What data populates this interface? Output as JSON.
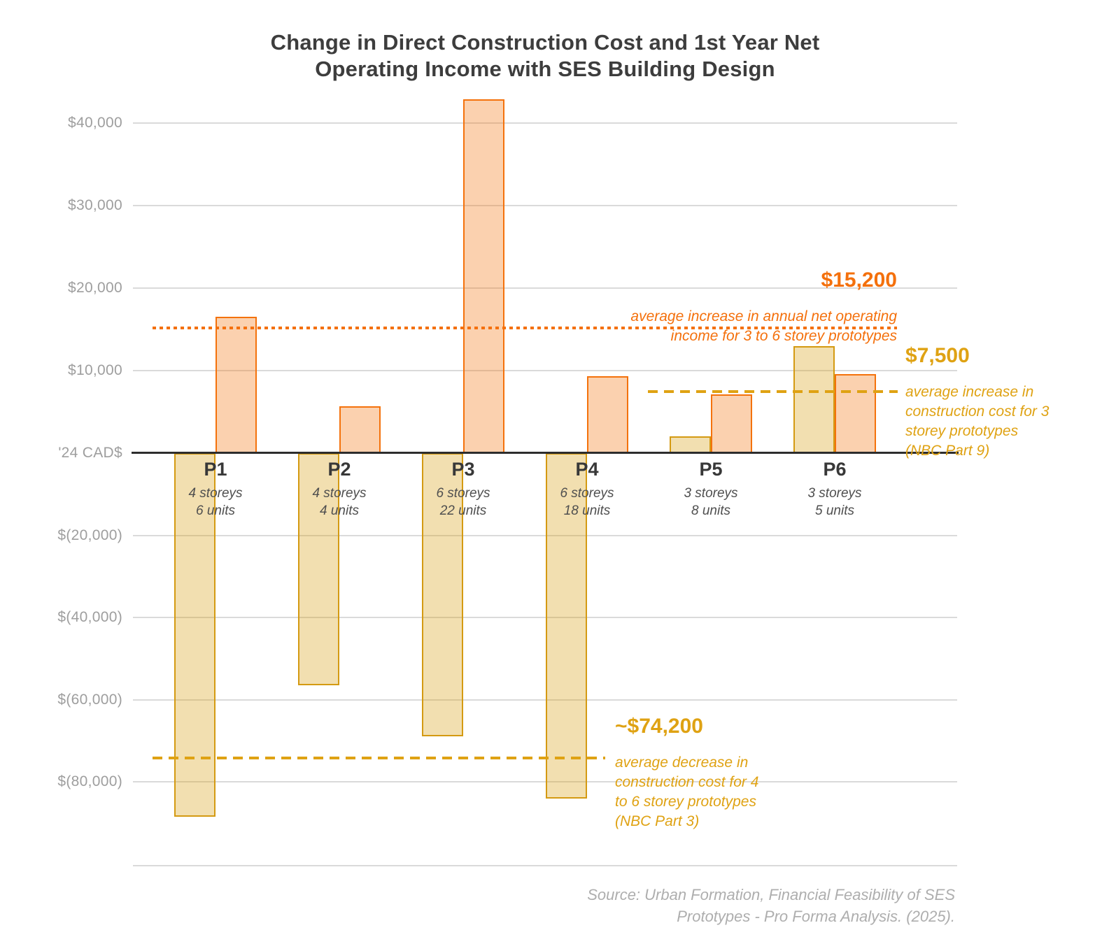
{
  "chart_data": {
    "type": "bar",
    "title": "Change in Direct Construction Cost and 1st Year Net\nOperating Income with SES Building Design",
    "y_axis": {
      "zero_label": "'24 CAD$",
      "ticks": [
        {
          "label": "$40,000",
          "value": 40000
        },
        {
          "label": "$30,000",
          "value": 30000
        },
        {
          "label": "$20,000",
          "value": 20000
        },
        {
          "label": "$10,000",
          "value": 10000
        },
        {
          "label": "$(20,000)",
          "value": -20000
        },
        {
          "label": "$(40,000)",
          "value": -40000
        },
        {
          "label": "$(60,000)",
          "value": -60000
        },
        {
          "label": "$(80,000)",
          "value": -80000
        }
      ],
      "range_positive": [
        0,
        43000
      ],
      "range_negative": [
        0,
        -92000
      ],
      "note": "negative half of axis is compressed to half the positive pixel scale"
    },
    "categories": [
      {
        "id": "P1",
        "label": "P1",
        "sublabel": "4 storeys\n6 units"
      },
      {
        "id": "P2",
        "label": "P2",
        "sublabel": "4 storeys\n4 units"
      },
      {
        "id": "P3",
        "label": "P3",
        "sublabel": "6 storeys\n22 units"
      },
      {
        "id": "P4",
        "label": "P4",
        "sublabel": "6 storeys\n18 units"
      },
      {
        "id": "P5",
        "label": "P5",
        "sublabel": "3 storeys\n8 units"
      },
      {
        "id": "P6",
        "label": "P6",
        "sublabel": "3 storeys\n5 units"
      }
    ],
    "series": [
      {
        "id": "construction_cost",
        "name": "Change in direct construction cost",
        "values": [
          -88500,
          -56500,
          -69000,
          -84000,
          2000,
          13000
        ],
        "fill": "rgba(216,155,10,0.32)",
        "border": "#d49a12"
      },
      {
        "id": "net_operating_income",
        "name": "1st year net operating income",
        "values": [
          16500,
          5700,
          42900,
          9300,
          7100,
          9600
        ],
        "fill": "rgba(244,114,12,0.33)",
        "border": "#f4720c"
      }
    ],
    "reference_lines": [
      {
        "id": "noi_avg",
        "value": 15200,
        "style": "dotted",
        "color": "#f4700c"
      },
      {
        "id": "cost3_avg",
        "value": 7500,
        "style": "dashed",
        "color": "#dfa213"
      },
      {
        "id": "cost46_avg",
        "value": -74200,
        "style": "dashed",
        "color": "#dfa213"
      }
    ],
    "annotations": {
      "noi_avg": {
        "amount": "$15,200",
        "body": "average increase in annual net operating\nincome for 3 to 6 storey prototypes"
      },
      "cost3_avg": {
        "amount": "$7,500",
        "body": "average increase in\nconstruction cost for 3\nstorey prototypes\n(NBC Part 9)"
      },
      "cost46_avg": {
        "amount": "~$74,200",
        "body": "average decrease in\nconstruction cost for 4\nto 6 storey prototypes\n(NBC Part 3)"
      }
    },
    "source": "Source: Urban Formation, Financial Feasibility of SES\nPrototypes - Pro Forma Analysis. (2025).",
    "colors": {
      "title": "#3d3d3d",
      "axis_label": "#9e9e9e",
      "zero_line": "#2d2d2d",
      "gridline": "#dadada",
      "orange_accent": "#f4700c",
      "gold_accent": "#dfa213"
    },
    "legend": "none",
    "grid": "horizontal"
  }
}
